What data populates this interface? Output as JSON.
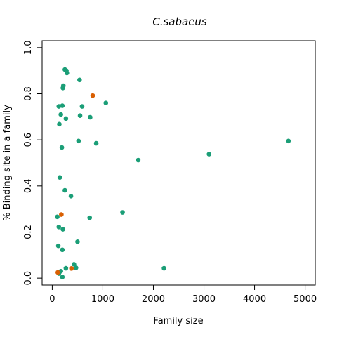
{
  "chart_data": {
    "type": "scatter",
    "title": "C.sabaeus",
    "xlabel": "Family size",
    "ylabel": "% Binding site in a family",
    "xlim": [
      -200,
      5200
    ],
    "ylim": [
      -0.03,
      1.03
    ],
    "x_ticks": [
      0,
      1000,
      2000,
      3000,
      4000,
      5000
    ],
    "y_ticks": [
      0.0,
      0.2,
      0.4,
      0.6,
      0.8,
      1.0
    ],
    "x_tick_labels": [
      "0",
      "1000",
      "2000",
      "3000",
      "4000",
      "5000"
    ],
    "y_tick_labels": [
      "0.0",
      "0.2",
      "0.4",
      "0.6",
      "0.8",
      "1.0"
    ],
    "grid": false,
    "colors": {
      "teal": "#1b9e77",
      "orange": "#d95f02"
    },
    "series": [
      {
        "color": "#1b9e77",
        "points": [
          [
            250,
            0.905
          ],
          [
            280,
            0.9
          ],
          [
            290,
            0.89
          ],
          [
            540,
            0.86
          ],
          [
            220,
            0.835
          ],
          [
            210,
            0.825
          ],
          [
            1060,
            0.76
          ],
          [
            130,
            0.745
          ],
          [
            200,
            0.748
          ],
          [
            590,
            0.745
          ],
          [
            170,
            0.71
          ],
          [
            550,
            0.705
          ],
          [
            270,
            0.692
          ],
          [
            750,
            0.698
          ],
          [
            140,
            0.668
          ],
          [
            520,
            0.595
          ],
          [
            870,
            0.585
          ],
          [
            190,
            0.567
          ],
          [
            4670,
            0.595
          ],
          [
            3100,
            0.538
          ],
          [
            1700,
            0.512
          ],
          [
            150,
            0.437
          ],
          [
            250,
            0.381
          ],
          [
            370,
            0.356
          ],
          [
            1390,
            0.285
          ],
          [
            100,
            0.266
          ],
          [
            740,
            0.262
          ],
          [
            130,
            0.222
          ],
          [
            210,
            0.212
          ],
          [
            500,
            0.158
          ],
          [
            120,
            0.14
          ],
          [
            200,
            0.123
          ],
          [
            430,
            0.06
          ],
          [
            270,
            0.043
          ],
          [
            470,
            0.045
          ],
          [
            2210,
            0.043
          ],
          [
            170,
            0.03
          ],
          [
            130,
            0.02
          ],
          [
            200,
            0.005
          ]
        ]
      },
      {
        "color": "#d95f02",
        "points": [
          [
            800,
            0.792
          ],
          [
            180,
            0.276
          ],
          [
            380,
            0.042
          ],
          [
            110,
            0.025
          ]
        ]
      }
    ]
  }
}
